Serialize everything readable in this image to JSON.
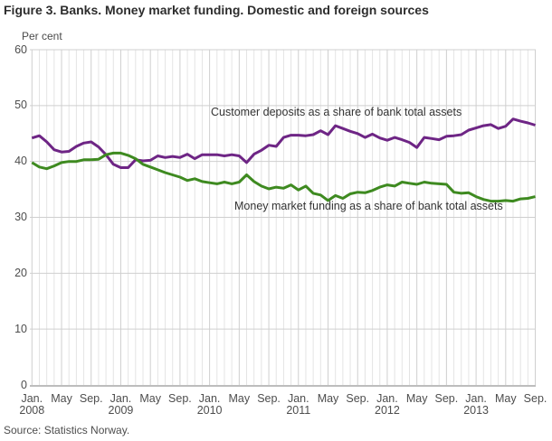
{
  "title": "Figure 3. Banks. Money market funding. Domestic and foreign sources",
  "y_axis_unit": "Per cent",
  "source": "Source: Statistics Norway.",
  "colors": {
    "deposits_line": "#6e2585",
    "money_market_line": "#3e8a20",
    "grid_minor": "#e4e4e4",
    "grid_major": "#cfcfcf",
    "baseline": "#bdbdbd",
    "axis_text": "#4d4d4d",
    "title_text": "#2d2d2d"
  },
  "chart_data": {
    "type": "line",
    "title": "Figure 3. Banks. Money market funding. Domestic and foreign sources",
    "ylabel": "Per cent",
    "ylim": [
      0,
      60
    ],
    "y_ticks": [
      0,
      10,
      20,
      30,
      40,
      50,
      60
    ],
    "grid": "on",
    "legend_position": "inline-annotations",
    "x_frequency": "monthly",
    "x_range": "Jan 2008 - Sep 2013",
    "x_tick_labels": [
      {
        "pos": 0,
        "month": "Jan.",
        "year": "2008"
      },
      {
        "pos": 4,
        "month": "May",
        "year": ""
      },
      {
        "pos": 8,
        "month": "Sep.",
        "year": ""
      },
      {
        "pos": 12,
        "month": "Jan.",
        "year": "2009"
      },
      {
        "pos": 16,
        "month": "May",
        "year": ""
      },
      {
        "pos": 20,
        "month": "Sep.",
        "year": ""
      },
      {
        "pos": 24,
        "month": "Jan.",
        "year": "2010"
      },
      {
        "pos": 28,
        "month": "May",
        "year": ""
      },
      {
        "pos": 32,
        "month": "Sep.",
        "year": ""
      },
      {
        "pos": 36,
        "month": "Jan.",
        "year": "2011"
      },
      {
        "pos": 40,
        "month": "May",
        "year": ""
      },
      {
        "pos": 44,
        "month": "Sep.",
        "year": ""
      },
      {
        "pos": 48,
        "month": "Jan.",
        "year": "2012"
      },
      {
        "pos": 52,
        "month": "May",
        "year": ""
      },
      {
        "pos": 56,
        "month": "Sep.",
        "year": ""
      },
      {
        "pos": 60,
        "month": "Jan.",
        "year": "2013"
      },
      {
        "pos": 64,
        "month": "May",
        "year": ""
      },
      {
        "pos": 68,
        "month": "Sep.",
        "year": ""
      }
    ],
    "series": [
      {
        "name": "Customer deposits as a share of bank total assets",
        "color": "#6e2585",
        "values": [
          44.2,
          44.6,
          43.5,
          42.1,
          41.7,
          41.8,
          42.7,
          43.3,
          43.5,
          42.6,
          41.2,
          39.5,
          38.9,
          38.9,
          40.3,
          40.1,
          40.2,
          41.0,
          40.7,
          40.9,
          40.7,
          41.3,
          40.5,
          41.2,
          41.2,
          41.2,
          41.0,
          41.2,
          41.0,
          39.8,
          41.3,
          42.0,
          42.9,
          42.7,
          44.3,
          44.7,
          44.7,
          44.6,
          44.8,
          45.5,
          44.8,
          46.4,
          45.9,
          45.4,
          45.0,
          44.3,
          44.9,
          44.2,
          43.8,
          44.3,
          43.9,
          43.4,
          42.5,
          44.3,
          44.1,
          43.9,
          44.5,
          44.6,
          44.8,
          45.6,
          46.0,
          46.4,
          46.6,
          45.9,
          46.3,
          47.6,
          47.2,
          46.9,
          46.5
        ]
      },
      {
        "name": "Money market funding as a share of bank total assets",
        "color": "#3e8a20",
        "values": [
          39.8,
          39.0,
          38.7,
          39.2,
          39.8,
          40.0,
          40.0,
          40.3,
          40.3,
          40.4,
          41.2,
          41.5,
          41.5,
          41.1,
          40.5,
          39.5,
          39.0,
          38.5,
          38.0,
          37.6,
          37.2,
          36.6,
          36.9,
          36.4,
          36.2,
          36.0,
          36.3,
          36.0,
          36.3,
          37.6,
          36.4,
          35.6,
          35.1,
          35.4,
          35.2,
          35.8,
          34.9,
          35.6,
          34.3,
          34.0,
          33.0,
          33.9,
          33.4,
          34.2,
          34.5,
          34.4,
          34.8,
          35.4,
          35.8,
          35.6,
          36.3,
          36.1,
          35.9,
          36.3,
          36.1,
          36.0,
          35.9,
          34.5,
          34.3,
          34.4,
          33.7,
          33.2,
          32.9,
          32.9,
          33.0,
          32.9,
          33.3,
          33.4,
          33.7
        ]
      }
    ]
  }
}
